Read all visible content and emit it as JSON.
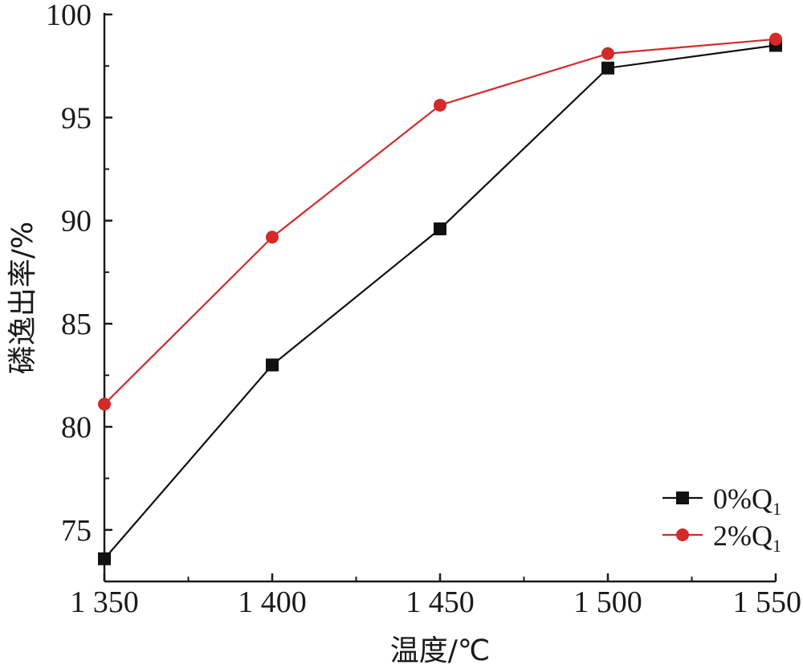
{
  "chart_data": {
    "type": "line",
    "title": "",
    "xlabel": "温度/℃",
    "ylabel": "磷逸出率/%",
    "x": [
      1350,
      1400,
      1450,
      1500,
      1550
    ],
    "x_tick_labels": [
      "1 350",
      "1 400",
      "1 450",
      "1 500",
      "1 550"
    ],
    "y_tick_labels": [
      "75",
      "80",
      "85",
      "90",
      "95",
      "100"
    ],
    "xlim": [
      1350,
      1550
    ],
    "ylim": [
      72.5,
      100
    ],
    "grid": false,
    "legend_position": "bottom-right",
    "series": [
      {
        "name": "0%Q1",
        "name_main": "0%Q",
        "name_sub": "1",
        "values": [
          73.6,
          83.0,
          89.6,
          97.4,
          98.5
        ],
        "color": "#111111",
        "marker": "square"
      },
      {
        "name": "2%Q1",
        "name_main": "2%Q",
        "name_sub": "1",
        "values": [
          81.1,
          89.2,
          95.6,
          98.1,
          98.8
        ],
        "color": "#d42a2a",
        "marker": "circle"
      }
    ]
  }
}
